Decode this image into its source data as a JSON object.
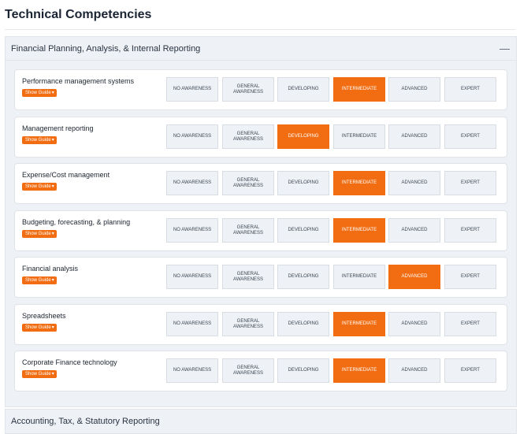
{
  "page": {
    "title": "Technical Competencies"
  },
  "sections": [
    {
      "title": "Financial Planning, Analysis, & Internal Reporting",
      "collapse_icon": "minus-icon",
      "levels": [
        "NO AWARENESS",
        "GENERAL AWARENESS",
        "DEVELOPING",
        "INTERMEDIATE",
        "ADVANCED",
        "EXPERT"
      ],
      "guide_label": "Show Guide",
      "competencies": [
        {
          "name": "Performance management systems",
          "selected": "INTERMEDIATE"
        },
        {
          "name": "Management reporting",
          "selected": "DEVELOPING"
        },
        {
          "name": "Expense/Cost management",
          "selected": "INTERMEDIATE"
        },
        {
          "name": "Budgeting, forecasting, & planning",
          "selected": "INTERMEDIATE"
        },
        {
          "name": "Financial analysis",
          "selected": "ADVANCED"
        },
        {
          "name": "Spreadsheets",
          "selected": "INTERMEDIATE"
        },
        {
          "name": "Corporate Finance technology",
          "selected": "INTERMEDIATE"
        }
      ]
    },
    {
      "title": "Accounting, Tax, & Statutory Reporting"
    }
  ],
  "colors": {
    "accent": "#f26d12",
    "level_bg": "#eef1f5",
    "section_bg": "#eef1f5"
  }
}
